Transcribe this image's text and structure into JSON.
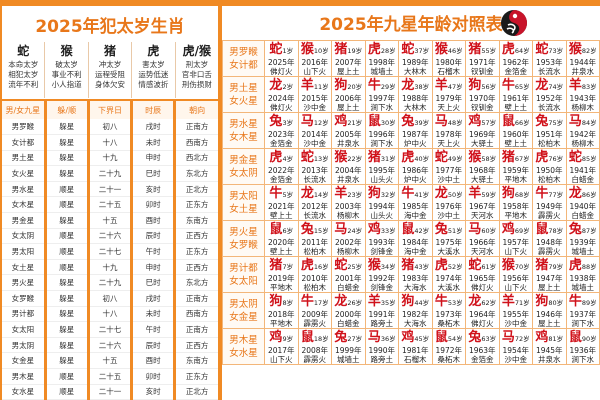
{
  "left": {
    "title": "2025年犯太岁生肖",
    "zodiacs": [
      {
        "name": "蛇",
        "lines": [
          "本命太岁",
          "相犯太岁",
          "流年不利"
        ]
      },
      {
        "name": "猴",
        "lines": [
          "破太岁",
          "事业不利",
          "小人指道"
        ]
      },
      {
        "name": "猪",
        "lines": [
          "冲太岁",
          "运程受阻",
          "身体欠安"
        ]
      },
      {
        "name": "虎",
        "lines": [
          "害太岁",
          "运势低迷",
          "情感波折"
        ]
      },
      {
        "name": "虎/猴",
        "lines": [
          "刑太岁",
          "官非口舌",
          "刑伤损财"
        ]
      }
    ],
    "headers": [
      "男/女九星",
      "躲/顺",
      "下界日",
      "时辰",
      "朝向"
    ],
    "rows": [
      [
        "男罗睺",
        "躲星",
        "初八",
        "戌时",
        "正南方"
      ],
      [
        "女计都",
        "躲星",
        "十八",
        "未时",
        "西南方"
      ],
      [
        "男土星",
        "躲星",
        "十九",
        "申时",
        "西北方"
      ],
      [
        "女火星",
        "躲星",
        "二十九",
        "巳时",
        "东北方"
      ],
      [
        "男水星",
        "顺星",
        "二十一",
        "亥时",
        "正北方"
      ],
      [
        "女木星",
        "顺星",
        "二十五",
        "卯时",
        "正东方"
      ],
      [
        "男金星",
        "躲星",
        "十五",
        "酉时",
        "东南方"
      ],
      [
        "女太阴",
        "顺星",
        "二十六",
        "辰时",
        "正西方"
      ],
      [
        "男太阳",
        "顺星",
        "二十七",
        "午时",
        "正东方"
      ],
      [
        "女土星",
        "顺星",
        "十九",
        "申时",
        "正西方"
      ],
      [
        "男火星",
        "躲星",
        "二十九",
        "巳时",
        "东北方"
      ],
      [
        "女罗睺",
        "躲星",
        "初八",
        "戌时",
        "正南方"
      ],
      [
        "男计都",
        "躲星",
        "十八",
        "未时",
        "西南方"
      ],
      [
        "女太阳",
        "躲星",
        "二十七",
        "午时",
        "正南方"
      ],
      [
        "男太阴",
        "躲星",
        "二十六",
        "辰时",
        "正西方"
      ],
      [
        "女金星",
        "躲星",
        "十五",
        "酉时",
        "东南方"
      ],
      [
        "男木星",
        "顺星",
        "二十五",
        "卯时",
        "正东方"
      ],
      [
        "女水星",
        "顺星",
        "二十一",
        "亥时",
        "正北方"
      ]
    ]
  },
  "right": {
    "title": "2025年九星年龄对照表",
    "colors": {
      "accent": "#f08a24",
      "animal": "#d0121b"
    },
    "rows": [
      {
        "label": [
          "男罗睺",
          "女计都"
        ],
        "cells": [
          [
            "蛇",
            "1岁",
            "2025年",
            "佛灯火"
          ],
          [
            "猴",
            "10岁",
            "2016年",
            "山下火"
          ],
          [
            "猪",
            "19岁",
            "2007年",
            "屋上土"
          ],
          [
            "虎",
            "28岁",
            "1998年",
            "城墙土"
          ],
          [
            "蛇",
            "37岁",
            "1989年",
            "大林木"
          ],
          [
            "猴",
            "46岁",
            "1980年",
            "石榴木"
          ],
          [
            "猪",
            "55岁",
            "1971年",
            "钗钏金"
          ],
          [
            "虎",
            "64岁",
            "1962年",
            "金箔金"
          ],
          [
            "蛇",
            "73岁",
            "1953年",
            "长流水"
          ],
          [
            "猴",
            "82岁",
            "1944年",
            "井泉水"
          ]
        ]
      },
      {
        "label": [
          "男土星",
          "女火星"
        ],
        "cells": [
          [
            "龙",
            "2岁",
            "2024年",
            "佛灯火"
          ],
          [
            "羊",
            "11岁",
            "2015年",
            "沙中金"
          ],
          [
            "狗",
            "20岁",
            "2006年",
            "屋上土"
          ],
          [
            "牛",
            "29岁",
            "1997年",
            "涧下水"
          ],
          [
            "龙",
            "38岁",
            "1988年",
            "大林木"
          ],
          [
            "羊",
            "47岁",
            "1979年",
            "天上火"
          ],
          [
            "狗",
            "56岁",
            "1970年",
            "钗钏金"
          ],
          [
            "牛",
            "65岁",
            "1961年",
            "壁上土"
          ],
          [
            "龙",
            "74岁",
            "1952年",
            "长流水"
          ],
          [
            "羊",
            "83岁",
            "1943年",
            "杨柳木"
          ]
        ]
      },
      {
        "label": [
          "男水星",
          "女木星"
        ],
        "cells": [
          [
            "兔",
            "3岁",
            "2023年",
            "金箔金"
          ],
          [
            "马",
            "12岁",
            "2014年",
            "沙中金"
          ],
          [
            "鸡",
            "21岁",
            "2005年",
            "井泉水"
          ],
          [
            "鼠",
            "30岁",
            "1996年",
            "涧下水"
          ],
          [
            "兔",
            "39岁",
            "1987年",
            "炉中火"
          ],
          [
            "马",
            "48岁",
            "1978年",
            "天上火"
          ],
          [
            "鸡",
            "57岁",
            "1969年",
            "大驿土"
          ],
          [
            "鼠",
            "66岁",
            "1960年",
            "壁上土"
          ],
          [
            "兔",
            "75岁",
            "1951年",
            "松柏木"
          ],
          [
            "马",
            "84岁",
            "1942年",
            "杨柳木"
          ]
        ]
      },
      {
        "label": [
          "男金星",
          "女太阴"
        ],
        "cells": [
          [
            "虎",
            "4岁",
            "2022年",
            "金箔金"
          ],
          [
            "蛇",
            "13岁",
            "2013年",
            "长流水"
          ],
          [
            "猴",
            "22岁",
            "2004年",
            "井泉水"
          ],
          [
            "猪",
            "31岁",
            "1995年",
            "山头火"
          ],
          [
            "虎",
            "40岁",
            "1986年",
            "炉中火"
          ],
          [
            "蛇",
            "49岁",
            "1977年",
            "沙中土"
          ],
          [
            "猴",
            "58岁",
            "1968年",
            "大驿土"
          ],
          [
            "猪",
            "67岁",
            "1959年",
            "平地木"
          ],
          [
            "虎",
            "76岁",
            "1950年",
            "松柏木"
          ],
          [
            "蛇",
            "85岁",
            "1941年",
            "白蜡金"
          ]
        ]
      },
      {
        "label": [
          "男太阳",
          "女土星"
        ],
        "cells": [
          [
            "牛",
            "5岁",
            "2021年",
            "壁上土"
          ],
          [
            "龙",
            "14岁",
            "2012年",
            "长流水"
          ],
          [
            "羊",
            "23岁",
            "2003年",
            "杨柳木"
          ],
          [
            "狗",
            "32岁",
            "1994年",
            "山头火"
          ],
          [
            "牛",
            "41岁",
            "1985年",
            "海中金"
          ],
          [
            "龙",
            "50岁",
            "1976年",
            "沙中土"
          ],
          [
            "羊",
            "59岁",
            "1967年",
            "天河水"
          ],
          [
            "狗",
            "68岁",
            "1958年",
            "平地木"
          ],
          [
            "牛",
            "77岁",
            "1949年",
            "霹雳火"
          ],
          [
            "龙",
            "86岁",
            "1940年",
            "白蜡金"
          ]
        ]
      },
      {
        "label": [
          "男火星",
          "女罗睺"
        ],
        "cells": [
          [
            "鼠",
            "6岁",
            "2020年",
            "壁上土"
          ],
          [
            "兔",
            "15岁",
            "2011年",
            "松柏木"
          ],
          [
            "马",
            "24岁",
            "2002年",
            "杨柳木"
          ],
          [
            "鸡",
            "33岁",
            "1993年",
            "剑锋金"
          ],
          [
            "鼠",
            "42岁",
            "1984年",
            "海中金"
          ],
          [
            "兔",
            "51岁",
            "1975年",
            "大溪水"
          ],
          [
            "马",
            "60岁",
            "1966年",
            "天河水"
          ],
          [
            "鸡",
            "69岁",
            "1957年",
            "山下火"
          ],
          [
            "鼠",
            "78岁",
            "1948年",
            "霹雳火"
          ],
          [
            "兔",
            "87岁",
            "1939年",
            "城墙土"
          ]
        ]
      },
      {
        "label": [
          "男计都",
          "女太阳"
        ],
        "cells": [
          [
            "猪",
            "7岁",
            "2019年",
            "平地木"
          ],
          [
            "虎",
            "16岁",
            "2010年",
            "松柏木"
          ],
          [
            "蛇",
            "25岁",
            "2001年",
            "白蜡金"
          ],
          [
            "猴",
            "34岁",
            "1992年",
            "剑锋金"
          ],
          [
            "猪",
            "43岁",
            "1983年",
            "大海水"
          ],
          [
            "虎",
            "52岁",
            "1974年",
            "大溪水"
          ],
          [
            "蛇",
            "61岁",
            "1965年",
            "佛灯火"
          ],
          [
            "猴",
            "70岁",
            "1956年",
            "山下火"
          ],
          [
            "猪",
            "79岁",
            "1947年",
            "屋上土"
          ],
          [
            "虎",
            "88岁",
            "1938年",
            "城墙土"
          ]
        ]
      },
      {
        "label": [
          "男太阴",
          "女金星"
        ],
        "cells": [
          [
            "狗",
            "8岁",
            "2018年",
            "平地木"
          ],
          [
            "牛",
            "17岁",
            "2009年",
            "霹雳火"
          ],
          [
            "龙",
            "26岁",
            "2000年",
            "白蜡金"
          ],
          [
            "羊",
            "35岁",
            "1991年",
            "路旁土"
          ],
          [
            "狗",
            "44岁",
            "1982年",
            "大海水"
          ],
          [
            "牛",
            "53岁",
            "1973年",
            "桑柘木"
          ],
          [
            "龙",
            "62岁",
            "1964年",
            "佛灯火"
          ],
          [
            "羊",
            "71岁",
            "1955年",
            "沙中金"
          ],
          [
            "狗",
            "80岁",
            "1946年",
            "屋上土"
          ],
          [
            "牛",
            "89岁",
            "1937年",
            "涧下水"
          ]
        ]
      },
      {
        "label": [
          "男木星",
          "女水星"
        ],
        "cells": [
          [
            "鸡",
            "9岁",
            "2017年",
            "山下火"
          ],
          [
            "鼠",
            "18岁",
            "2008年",
            "霹雳火"
          ],
          [
            "兔",
            "27岁",
            "1999年",
            "城墙土"
          ],
          [
            "马",
            "36岁",
            "1990年",
            "路旁土"
          ],
          [
            "鸡",
            "45岁",
            "1981年",
            "石榴木"
          ],
          [
            "鼠",
            "54岁",
            "1972年",
            "桑柘木"
          ],
          [
            "兔",
            "63岁",
            "1963年",
            "金箔金"
          ],
          [
            "马",
            "72岁",
            "1954年",
            "沙中金"
          ],
          [
            "鸡",
            "81岁",
            "1945年",
            "井泉水"
          ],
          [
            "鼠",
            "90岁",
            "1936年",
            "涧下水"
          ]
        ]
      }
    ]
  }
}
